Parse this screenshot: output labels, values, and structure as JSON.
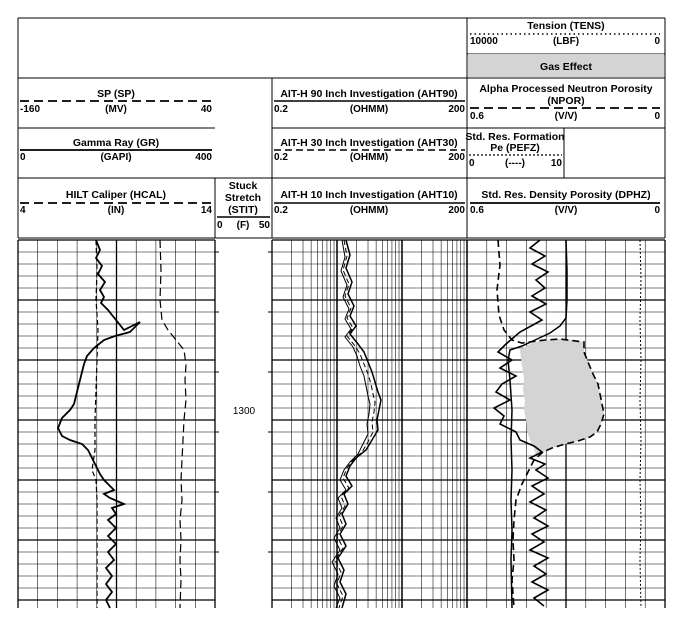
{
  "chart_data": {
    "type": "line",
    "title": "",
    "depth_label": "1300",
    "curves": [
      {
        "id": "tens",
        "label": "Tension (TENS)",
        "unit": "(LBF)",
        "scale_left": "10000",
        "scale_right": "0",
        "style": "dotted"
      },
      {
        "id": "gas",
        "label": "Gas Effect",
        "style": "shaded"
      },
      {
        "id": "npor",
        "label": "Alpha Processed Neutron Porosity",
        "label2": "(NPOR)",
        "unit": "(V/V)",
        "scale_left": "0.6",
        "scale_right": "0",
        "style": "dashed"
      },
      {
        "id": "sp",
        "label": "SP (SP)",
        "unit": "(MV)",
        "scale_left": "-160",
        "scale_right": "40",
        "style": "dashed"
      },
      {
        "id": "gr",
        "label": "Gamma Ray (GR)",
        "unit": "(GAPI)",
        "scale_left": "0",
        "scale_right": "400",
        "style": "solid"
      },
      {
        "id": "hcal",
        "label": "HILT Caliper (HCAL)",
        "unit": "(IN)",
        "scale_left": "4",
        "scale_right": "14",
        "style": "dashed"
      },
      {
        "id": "stit",
        "label": "Stuck",
        "label2": "Stretch",
        "label3": "(STIT)",
        "unit": "(F)",
        "scale_left": "0",
        "scale_right": "50",
        "style": "solid"
      },
      {
        "id": "aht90",
        "label": "AIT-H 90 Inch Investigation (AHT90)",
        "unit": "(OHMM)",
        "scale_left": "0.2",
        "scale_right": "200",
        "style": "solid"
      },
      {
        "id": "aht30",
        "label": "AIT-H 30 Inch Investigation (AHT30)",
        "unit": "(OHMM)",
        "scale_left": "0.2",
        "scale_right": "200",
        "style": "dashed"
      },
      {
        "id": "aht10",
        "label": "AIT-H 10 Inch Investigation (AHT10)",
        "unit": "(OHMM)",
        "scale_left": "0.2",
        "scale_right": "200",
        "style": "solid"
      },
      {
        "id": "pefz",
        "label": "Std. Res. Formation",
        "label2": "Pe (PEFZ)",
        "unit": "(----)",
        "scale_left": "0",
        "scale_right": "10",
        "style": "solid"
      },
      {
        "id": "dphz",
        "label": "Std. Res. Density Porosity (DPHZ)",
        "unit": "(V/V)",
        "scale_left": "0.6",
        "scale_right": "0",
        "style": "solid"
      }
    ]
  }
}
